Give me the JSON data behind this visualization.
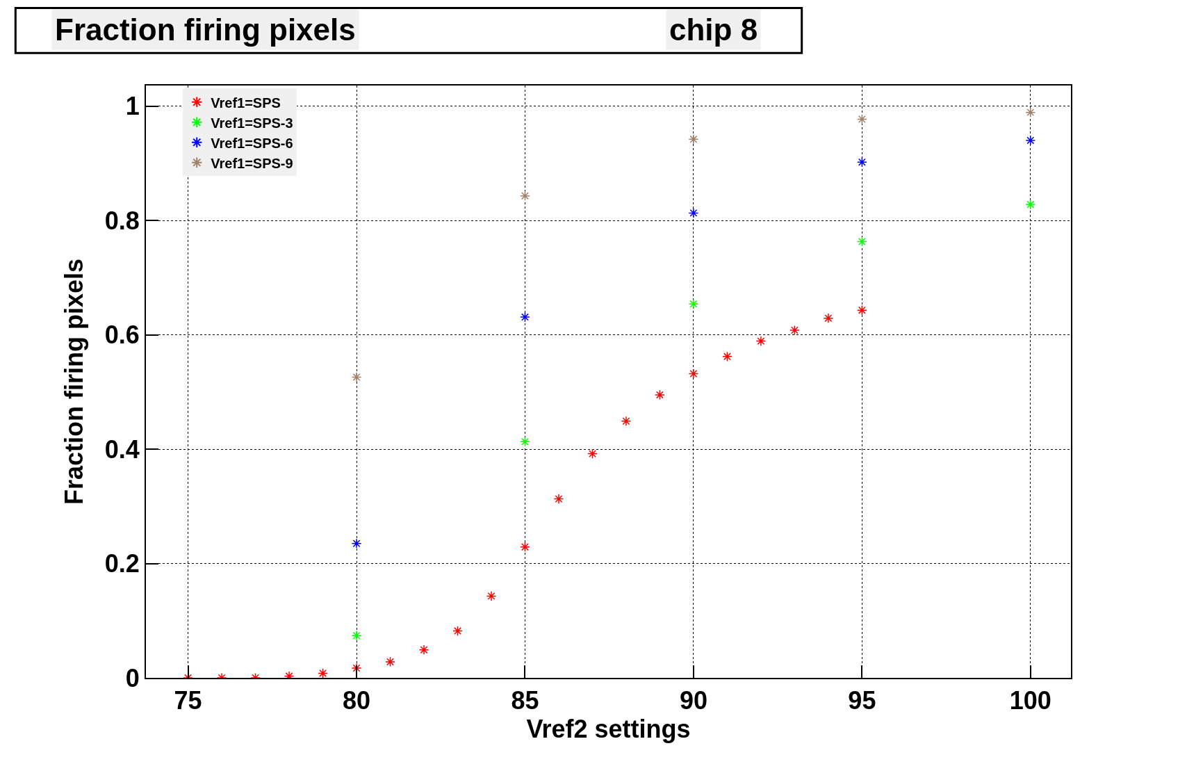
{
  "chart_data": {
    "type": "scatter",
    "title": "Fraction firing pixels",
    "subtitle": "chip 8",
    "xlabel": "Vref2 settings",
    "ylabel": "Fraction firing pixels",
    "xlim": [
      73.75,
      101.2
    ],
    "xticks": [
      75,
      80,
      85,
      90,
      95,
      100
    ],
    "ylim": [
      0,
      1.036
    ],
    "yticks": [
      0,
      0.2,
      0.4,
      0.6,
      0.8,
      1
    ],
    "grid": true,
    "legend": "top left",
    "marker": "cross",
    "series": [
      {
        "name": "Vref1=SPS",
        "color": "#ff0000",
        "x": [
          75,
          76,
          77,
          78,
          79,
          80,
          81,
          82,
          83,
          84,
          85,
          86,
          87,
          88,
          89,
          90,
          91,
          92,
          93,
          94,
          95
        ],
        "values": [
          0,
          0,
          0,
          0.003,
          0.008,
          0.017,
          0.028,
          0.049,
          0.082,
          0.143,
          0.229,
          0.313,
          0.392,
          0.449,
          0.495,
          0.532,
          0.562,
          0.589,
          0.608,
          0.629,
          0.643
        ]
      },
      {
        "name": "Vref1=SPS-3",
        "color": "#00ff00",
        "x": [
          80,
          85,
          90,
          95,
          100
        ],
        "values": [
          0.074,
          0.413,
          0.654,
          0.763,
          0.828
        ]
      },
      {
        "name": "Vref1=SPS-6",
        "color": "#0000ff",
        "x": [
          80,
          85,
          90,
          95,
          100
        ],
        "values": [
          0.235,
          0.631,
          0.813,
          0.902,
          0.94
        ]
      },
      {
        "name": "Vref1=SPS-9",
        "color": "#a0806a",
        "x": [
          80,
          85,
          90,
          95,
          100
        ],
        "values": [
          0.526,
          0.843,
          0.942,
          0.977,
          0.989
        ]
      }
    ]
  }
}
